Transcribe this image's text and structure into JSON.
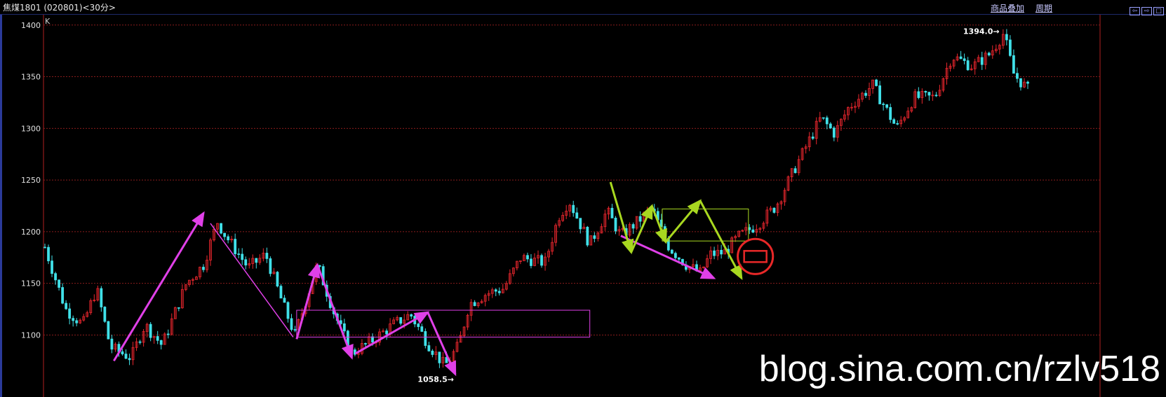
{
  "header": {
    "title": "焦煤1801 (020801)<30分>",
    "link_overlay": "商品叠加",
    "link_period": "周期"
  },
  "colors": {
    "up": "#e8262d",
    "down": "#40e0e8",
    "grid": "#8a1c1c",
    "annotation_magenta": "#e040e8",
    "annotation_green": "#a8d820",
    "circle": "#e82828"
  },
  "chart_data": {
    "type": "candlestick",
    "indicator_label": "K",
    "ylim": [
      1040,
      1410
    ],
    "y_ticks": [
      1100,
      1150,
      1200,
      1250,
      1300,
      1350,
      1400
    ],
    "high_label": "1394.0",
    "low_label": "1058.5",
    "high_value": 1394.0,
    "low_value": 1058.5,
    "bar_count": 280,
    "price_path": [
      [
        0,
        1185
      ],
      [
        12,
        1125
      ],
      [
        22,
        1110
      ],
      [
        30,
        1145
      ],
      [
        38,
        1088
      ],
      [
        50,
        1078
      ],
      [
        58,
        1110
      ],
      [
        68,
        1090
      ],
      [
        82,
        1150
      ],
      [
        92,
        1168
      ],
      [
        100,
        1210
      ],
      [
        104,
        1198
      ],
      [
        118,
        1165
      ],
      [
        128,
        1178
      ],
      [
        138,
        1130
      ],
      [
        145,
        1100
      ],
      [
        158,
        1168
      ],
      [
        168,
        1120
      ],
      [
        178,
        1082
      ],
      [
        190,
        1095
      ],
      [
        202,
        1110
      ],
      [
        212,
        1120
      ],
      [
        222,
        1092
      ],
      [
        232,
        1070
      ],
      [
        240,
        1090
      ],
      [
        246,
        1130
      ],
      [
        256,
        1140
      ],
      [
        266,
        1145
      ],
      [
        276,
        1175
      ],
      [
        290,
        1170
      ],
      [
        298,
        1215
      ],
      [
        304,
        1230
      ],
      [
        316,
        1188
      ],
      [
        326,
        1220
      ],
      [
        334,
        1196
      ],
      [
        352,
        1222
      ],
      [
        362,
        1185
      ],
      [
        372,
        1168
      ],
      [
        380,
        1160
      ],
      [
        386,
        1178
      ],
      [
        394,
        1180
      ],
      [
        402,
        1195
      ],
      [
        414,
        1208
      ],
      [
        424,
        1225
      ],
      [
        436,
        1265
      ],
      [
        450,
        1310
      ],
      [
        458,
        1295
      ],
      [
        466,
        1320
      ],
      [
        480,
        1342
      ],
      [
        494,
        1300
      ],
      [
        504,
        1330
      ],
      [
        516,
        1330
      ],
      [
        526,
        1370
      ],
      [
        538,
        1360
      ],
      [
        548,
        1372
      ],
      [
        556,
        1392
      ],
      [
        562,
        1352
      ],
      [
        570,
        1338
      ]
    ],
    "annotation_lines": [
      {
        "color": "magenta",
        "from": [
          40,
          1075
        ],
        "to": [
          92,
          1218
        ],
        "arrow": true
      },
      {
        "color": "magenta",
        "from": [
          96,
          1208
        ],
        "to": [
          144,
          1098
        ],
        "arrow": false
      },
      {
        "color": "magenta",
        "from": [
          146,
          1096
        ],
        "to": [
          158,
          1168
        ],
        "arrow": true
      },
      {
        "color": "magenta",
        "from": [
          158,
          1168
        ],
        "to": [
          178,
          1078
        ],
        "arrow": true
      },
      {
        "color": "magenta",
        "from": [
          180,
          1082
        ],
        "to": [
          222,
          1122
        ],
        "arrow": true
      },
      {
        "color": "magenta",
        "from": [
          222,
          1122
        ],
        "to": [
          238,
          1062
        ],
        "arrow": true
      },
      {
        "color": "magenta",
        "from": [
          334,
          1196
        ],
        "to": [
          388,
          1155
        ],
        "arrow": true
      },
      {
        "color": "green",
        "from": [
          328,
          1248
        ],
        "to": [
          340,
          1180
        ],
        "arrow": true
      },
      {
        "color": "green",
        "from": [
          340,
          1180
        ],
        "to": [
          352,
          1225
        ],
        "arrow": true
      },
      {
        "color": "green",
        "from": [
          352,
          1225
        ],
        "to": [
          360,
          1190
        ],
        "arrow": true
      },
      {
        "color": "green",
        "from": [
          360,
          1190
        ],
        "to": [
          380,
          1230
        ],
        "arrow": true
      },
      {
        "color": "green",
        "from": [
          380,
          1230
        ],
        "to": [
          404,
          1155
        ],
        "arrow": true
      }
    ],
    "annotation_boxes": [
      {
        "color": "magenta",
        "x0": 146,
        "x1": 316,
        "y0": 1098,
        "y1": 1124
      },
      {
        "color": "green",
        "x0": 358,
        "x1": 408,
        "y0": 1191,
        "y1": 1222
      }
    ],
    "annotation_circle": {
      "x": 412,
      "y": 1176,
      "radius_value": 17
    }
  },
  "watermark": "blog.sina.com.cn/rzlv518"
}
